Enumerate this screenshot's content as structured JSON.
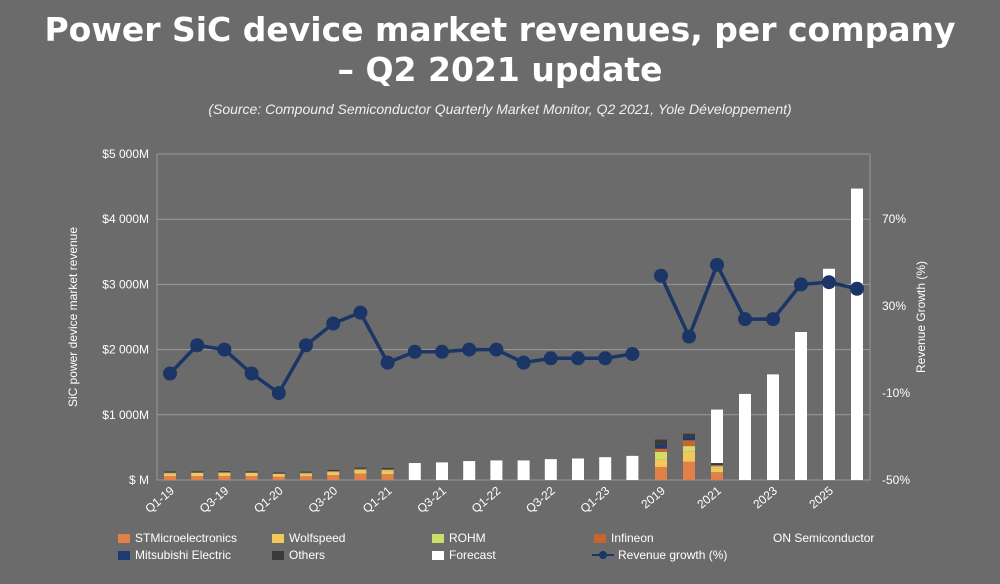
{
  "title_line1": "Power SiC device market revenues, per company",
  "title_line2": "– Q2 2021 update",
  "subtitle": "(Source: Compound Semiconductor Quarterly Market Monitor, Q2 2021, Yole Développement)",
  "chart_data": {
    "type": "bar",
    "ylabel": "SiC power device market revenue",
    "y2label": "Revenue Growth (%)",
    "ylim": [
      0,
      5000
    ],
    "y2lim": [
      -50,
      100
    ],
    "yticks": [
      "$ M",
      "$1 000M",
      "$2 000M",
      "$3 000M",
      "$4 000M",
      "$5 000M"
    ],
    "y2ticks": [
      {
        "v": -50,
        "label": "-50%"
      },
      {
        "v": -10,
        "label": "-10%"
      },
      {
        "v": 30,
        "label": "30%"
      },
      {
        "v": 70,
        "label": "70%"
      }
    ],
    "quarterly_labels": [
      "Q1-19",
      "Q3-19",
      "Q1-20",
      "Q3-20",
      "Q1-21",
      "Q3-21",
      "Q1-22",
      "Q3-22",
      "Q1-23"
    ],
    "annual_labels": [
      "2019",
      "2021",
      "2023",
      "2025"
    ],
    "series_colors": {
      "STMicroelectronics": "#e3804a",
      "Wolfspeed": "#f2c75c",
      "ROHM": "#cfdd6a",
      "Infineon": "#c9642c",
      "ON Semiconductor": "#6b6b6b",
      "Mitsubishi Electric": "#1f3a73",
      "Others": "#3a3a3a",
      "Forecast": "#ffffff"
    },
    "quarterly": [
      {
        "STMicroelectronics": 60,
        "Wolfspeed": 30,
        "ROHM": 15,
        "Infineon": 10,
        "Mitsubishi Electric": 8,
        "Others": 7,
        "Forecast": 0
      },
      {
        "STMicroelectronics": 60,
        "Wolfspeed": 32,
        "ROHM": 16,
        "Infineon": 10,
        "Mitsubishi Electric": 8,
        "Others": 7,
        "Forecast": 0
      },
      {
        "STMicroelectronics": 62,
        "Wolfspeed": 33,
        "ROHM": 16,
        "Infineon": 11,
        "Mitsubishi Electric": 8,
        "Others": 7,
        "Forecast": 0
      },
      {
        "STMicroelectronics": 60,
        "Wolfspeed": 32,
        "ROHM": 16,
        "Infineon": 10,
        "Mitsubishi Electric": 8,
        "Others": 7,
        "Forecast": 0
      },
      {
        "STMicroelectronics": 50,
        "Wolfspeed": 28,
        "ROHM": 14,
        "Infineon": 9,
        "Mitsubishi Electric": 7,
        "Others": 6,
        "Forecast": 0
      },
      {
        "STMicroelectronics": 58,
        "Wolfspeed": 30,
        "ROHM": 15,
        "Infineon": 10,
        "Mitsubishi Electric": 8,
        "Others": 7,
        "Forecast": 0
      },
      {
        "STMicroelectronics": 75,
        "Wolfspeed": 35,
        "ROHM": 17,
        "Infineon": 11,
        "Mitsubishi Electric": 8,
        "Others": 8,
        "Forecast": 0
      },
      {
        "STMicroelectronics": 100,
        "Wolfspeed": 40,
        "ROHM": 19,
        "Infineon": 12,
        "Mitsubishi Electric": 9,
        "Others": 10,
        "Forecast": 0
      },
      {
        "STMicroelectronics": 90,
        "Wolfspeed": 42,
        "ROHM": 20,
        "Infineon": 13,
        "Mitsubishi Electric": 10,
        "Others": 10,
        "Forecast": 0
      },
      {
        "STMicroelectronics": 0,
        "Wolfspeed": 0,
        "ROHM": 0,
        "Infineon": 0,
        "Mitsubishi Electric": 0,
        "Others": 0,
        "Forecast": 260
      },
      {
        "STMicroelectronics": 0,
        "Wolfspeed": 0,
        "ROHM": 0,
        "Infineon": 0,
        "Mitsubishi Electric": 0,
        "Others": 0,
        "Forecast": 270
      },
      {
        "STMicroelectronics": 0,
        "Wolfspeed": 0,
        "ROHM": 0,
        "Infineon": 0,
        "Mitsubishi Electric": 0,
        "Others": 0,
        "Forecast": 290
      },
      {
        "STMicroelectronics": 0,
        "Wolfspeed": 0,
        "ROHM": 0,
        "Infineon": 0,
        "Mitsubishi Electric": 0,
        "Others": 0,
        "Forecast": 300
      },
      {
        "STMicroelectronics": 0,
        "Wolfspeed": 0,
        "ROHM": 0,
        "Infineon": 0,
        "Mitsubishi Electric": 0,
        "Others": 0,
        "Forecast": 300
      },
      {
        "STMicroelectronics": 0,
        "Wolfspeed": 0,
        "ROHM": 0,
        "Infineon": 0,
        "Mitsubishi Electric": 0,
        "Others": 0,
        "Forecast": 320
      },
      {
        "STMicroelectronics": 0,
        "Wolfspeed": 0,
        "ROHM": 0,
        "Infineon": 0,
        "Mitsubishi Electric": 0,
        "Others": 0,
        "Forecast": 330
      },
      {
        "STMicroelectronics": 0,
        "Wolfspeed": 0,
        "ROHM": 0,
        "Infineon": 0,
        "Mitsubishi Electric": 0,
        "Others": 0,
        "Forecast": 350
      },
      {
        "STMicroelectronics": 0,
        "Wolfspeed": 0,
        "ROHM": 0,
        "Infineon": 0,
        "Mitsubishi Electric": 0,
        "Others": 0,
        "Forecast": 370
      }
    ],
    "quarterly_growth": [
      -1,
      12,
      10,
      -1,
      -10,
      12,
      22,
      27,
      4,
      9,
      9,
      10,
      10,
      4,
      6,
      6,
      6,
      8
    ],
    "annual": [
      {
        "STMicroelectronics": 200,
        "Wolfspeed": 120,
        "ROHM": 110,
        "Infineon": 50,
        "Mitsubishi Electric": 60,
        "Others": 80,
        "Forecast": 0
      },
      {
        "STMicroelectronics": 280,
        "Wolfspeed": 160,
        "ROHM": 80,
        "Infineon": 90,
        "Mitsubishi Electric": 60,
        "Others": 40,
        "Forecast": 0
      },
      {
        "STMicroelectronics": 120,
        "Wolfspeed": 60,
        "ROHM": 30,
        "Infineon": 20,
        "Mitsubishi Electric": 15,
        "Others": 15,
        "Forecast": 820
      },
      {
        "STMicroelectronics": 0,
        "Wolfspeed": 0,
        "ROHM": 0,
        "Infineon": 0,
        "Mitsubishi Electric": 0,
        "Others": 0,
        "Forecast": 1320
      },
      {
        "STMicroelectronics": 0,
        "Wolfspeed": 0,
        "ROHM": 0,
        "Infineon": 0,
        "Mitsubishi Electric": 0,
        "Others": 0,
        "Forecast": 1620
      },
      {
        "STMicroelectronics": 0,
        "Wolfspeed": 0,
        "ROHM": 0,
        "Infineon": 0,
        "Mitsubishi Electric": 0,
        "Others": 0,
        "Forecast": 2270
      },
      {
        "STMicroelectronics": 0,
        "Wolfspeed": 0,
        "ROHM": 0,
        "Infineon": 0,
        "Mitsubishi Electric": 0,
        "Others": 0,
        "Forecast": 3240
      },
      {
        "STMicroelectronics": 0,
        "Wolfspeed": 0,
        "ROHM": 0,
        "Infineon": 0,
        "Mitsubishi Electric": 0,
        "Others": 0,
        "Forecast": 4470
      }
    ],
    "annual_growth": [
      44,
      16,
      49,
      24,
      24,
      40,
      41,
      38
    ]
  },
  "legend": {
    "row1": [
      "STMicroelectronics",
      "Wolfspeed",
      "ROHM",
      "Infineon",
      "ON Semiconductor"
    ],
    "row2": [
      "Mitsubishi Electric",
      "Others",
      "Forecast",
      "Revenue growth (%)"
    ]
  }
}
